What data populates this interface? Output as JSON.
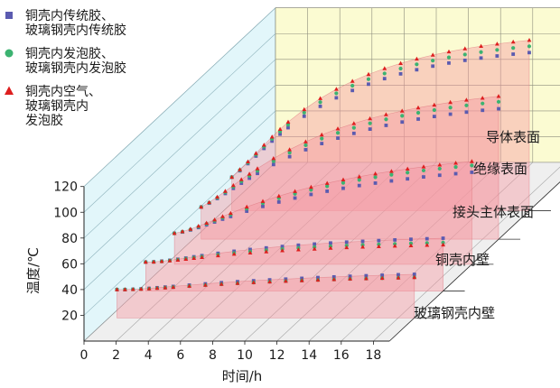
{
  "chart_data": {
    "type": "scatter",
    "xlabel": "时间/h",
    "ylabel": "温度/℃",
    "xlim": [
      0,
      19
    ],
    "ylim": [
      0,
      120
    ],
    "x_ticks": [
      "0",
      "2",
      "4",
      "6",
      "8",
      "10",
      "12",
      "14",
      "16",
      "18"
    ],
    "y_ticks": [
      "20",
      "40",
      "60",
      "80",
      "100",
      "120"
    ],
    "legend_position": "top-left",
    "layers": [
      "玻璃钢壳内壁",
      "铜壳内壁",
      "接头主体表面",
      "绝缘表面",
      "导体表面"
    ],
    "series": [
      {
        "name": "铜壳内传统胶、玻璃钢壳内传统胶",
        "legend_lines": [
          "铜壳内传统胶、",
          "玻璃钢壳内传统胶"
        ],
        "marker": "square",
        "color": "#5b5bb0",
        "x": [
          0.5,
          1,
          1.5,
          2,
          2.5,
          3,
          3.5,
          4,
          5,
          6,
          7,
          8,
          9,
          10,
          11,
          12,
          13,
          14,
          15,
          16,
          17,
          18,
          19
        ],
        "layers": {
          "玻璃钢壳内壁": [
            22.0,
            22.0,
            22.2,
            22.5,
            22.9,
            23.4,
            23.9,
            24.4,
            25.4,
            26.4,
            27.3,
            28.1,
            28.8,
            29.5,
            30.1,
            30.7,
            31.3,
            31.8,
            32.3,
            32.7,
            33.1,
            33.5,
            33.8
          ],
          "铜壳内壁": [
            22.5,
            22.7,
            23.2,
            23.9,
            24.7,
            25.6,
            26.6,
            27.5,
            29.3,
            30.9,
            32.3,
            33.5,
            34.6,
            35.6,
            36.5,
            37.3,
            38.0,
            38.6,
            39.2,
            39.7,
            40.2,
            40.6,
            41.0
          ],
          "接头主体表面": [
            24.0,
            25.0,
            26.6,
            28.5,
            30.6,
            32.8,
            35.0,
            37.1,
            41.2,
            44.9,
            48.3,
            51.4,
            54.2,
            56.7,
            59.0,
            61.1,
            63.0,
            64.7,
            66.3,
            67.8,
            69.1,
            70.3,
            71.4
          ],
          "绝缘表面": [
            25.0,
            28.0,
            31.6,
            35.5,
            39.5,
            43.5,
            47.4,
            51.1,
            58.0,
            64.1,
            69.5,
            74.3,
            78.5,
            82.2,
            85.5,
            88.4,
            91.0,
            93.3,
            95.3,
            97.1,
            98.7,
            100.1,
            101.3
          ],
          "导体表面": [
            26.0,
            31.0,
            36.5,
            42.4,
            48.3,
            54.0,
            59.4,
            64.4,
            73.3,
            81.0,
            87.6,
            93.3,
            98.2,
            102.5,
            106.2,
            109.4,
            112.2,
            114.6,
            116.7,
            118.5,
            120.1,
            121.5,
            122.7
          ]
        }
      },
      {
        "name": "铜壳内发泡胶、玻璃钢壳内发泡胶",
        "legend_lines": [
          "铜壳内发泡胶、",
          "玻璃钢壳内发泡胶"
        ],
        "marker": "circle",
        "color": "#3cb371",
        "x": [
          0.5,
          1,
          1.5,
          2,
          2.5,
          3,
          3.5,
          4,
          5,
          6,
          7,
          8,
          9,
          10,
          11,
          12,
          13,
          14,
          15,
          16,
          17,
          18,
          19
        ],
        "layers": {
          "玻璃钢壳内壁": [
            22.0,
            22.0,
            22.1,
            22.3,
            22.6,
            23.0,
            23.4,
            23.8,
            24.6,
            25.4,
            26.1,
            26.8,
            27.4,
            28.0,
            28.5,
            29.0,
            29.4,
            29.8,
            30.2,
            30.5,
            30.8,
            31.1,
            31.4
          ],
          "铜壳内壁": [
            22.5,
            22.6,
            23.0,
            23.6,
            24.3,
            25.1,
            25.9,
            26.7,
            28.2,
            29.5,
            30.7,
            31.7,
            32.6,
            33.4,
            34.1,
            34.7,
            35.3,
            35.8,
            36.2,
            36.6,
            37.0,
            37.3,
            37.6
          ],
          "接头主体表面": [
            24.0,
            25.2,
            27.0,
            29.1,
            31.4,
            33.8,
            36.2,
            38.6,
            43.2,
            47.4,
            51.2,
            54.7,
            57.8,
            60.6,
            63.2,
            65.5,
            67.6,
            69.5,
            71.2,
            72.8,
            74.2,
            75.5,
            76.7
          ],
          "绝缘表面": [
            25.0,
            28.3,
            32.2,
            36.4,
            40.7,
            45.0,
            49.2,
            53.2,
            60.6,
            67.2,
            73.0,
            78.1,
            82.6,
            86.5,
            90.0,
            93.1,
            95.8,
            98.2,
            100.3,
            102.2,
            103.9,
            105.4,
            106.7
          ],
          "导体表面": [
            26.0,
            31.5,
            37.3,
            43.5,
            49.7,
            55.7,
            61.4,
            66.7,
            76.1,
            84.2,
            91.1,
            97.0,
            102.1,
            106.5,
            110.3,
            113.6,
            116.5,
            119.0,
            121.2,
            123.1,
            124.8,
            126.3,
            127.6
          ]
        }
      },
      {
        "name": "铜壳内空气、玻璃钢壳内发泡胶",
        "legend_lines": [
          "铜壳内空气、",
          "玻璃钢壳内",
          "发泡胶"
        ],
        "marker": "triangle",
        "color": "#dd1f1f",
        "x": [
          0.5,
          1,
          1.5,
          2,
          2.5,
          3,
          3.5,
          4,
          5,
          6,
          7,
          8,
          9,
          10,
          11,
          12,
          13,
          14,
          15,
          16,
          17,
          18,
          19
        ],
        "layers": {
          "玻璃钢壳内壁": [
            22.0,
            22.0,
            22.1,
            22.3,
            22.6,
            23.0,
            23.4,
            23.8,
            24.6,
            25.4,
            26.1,
            26.8,
            27.4,
            28.0,
            28.5,
            29.0,
            29.4,
            29.8,
            30.2,
            30.5,
            30.8,
            31.1,
            31.4
          ],
          "铜壳内壁": [
            22.5,
            22.6,
            23.0,
            23.5,
            24.1,
            24.8,
            25.5,
            26.2,
            27.5,
            28.7,
            29.7,
            30.6,
            31.4,
            32.1,
            32.7,
            33.3,
            33.8,
            34.2,
            34.6,
            35.0,
            35.3,
            35.6,
            35.9
          ],
          "接头主体表面": [
            24.0,
            25.4,
            27.3,
            29.6,
            32.0,
            34.5,
            37.1,
            39.6,
            44.5,
            48.9,
            52.9,
            56.6,
            59.9,
            62.9,
            65.6,
            68.0,
            70.2,
            72.2,
            74.0,
            75.7,
            77.2,
            78.6,
            79.8
          ],
          "绝缘表面": [
            25.0,
            28.6,
            32.8,
            37.3,
            41.8,
            46.3,
            50.7,
            54.9,
            62.7,
            69.6,
            75.7,
            81.1,
            85.8,
            89.9,
            93.6,
            96.8,
            99.6,
            102.1,
            104.3,
            106.3,
            108.1,
            109.6,
            111.0
          ],
          "导体表面": [
            26.0,
            31.9,
            38.0,
            44.5,
            51.0,
            57.3,
            63.2,
            68.8,
            78.6,
            87.1,
            94.3,
            100.5,
            105.8,
            110.4,
            114.4,
            117.8,
            120.8,
            123.4,
            125.7,
            127.7,
            129.4,
            131.0,
            132.3
          ]
        }
      }
    ]
  }
}
